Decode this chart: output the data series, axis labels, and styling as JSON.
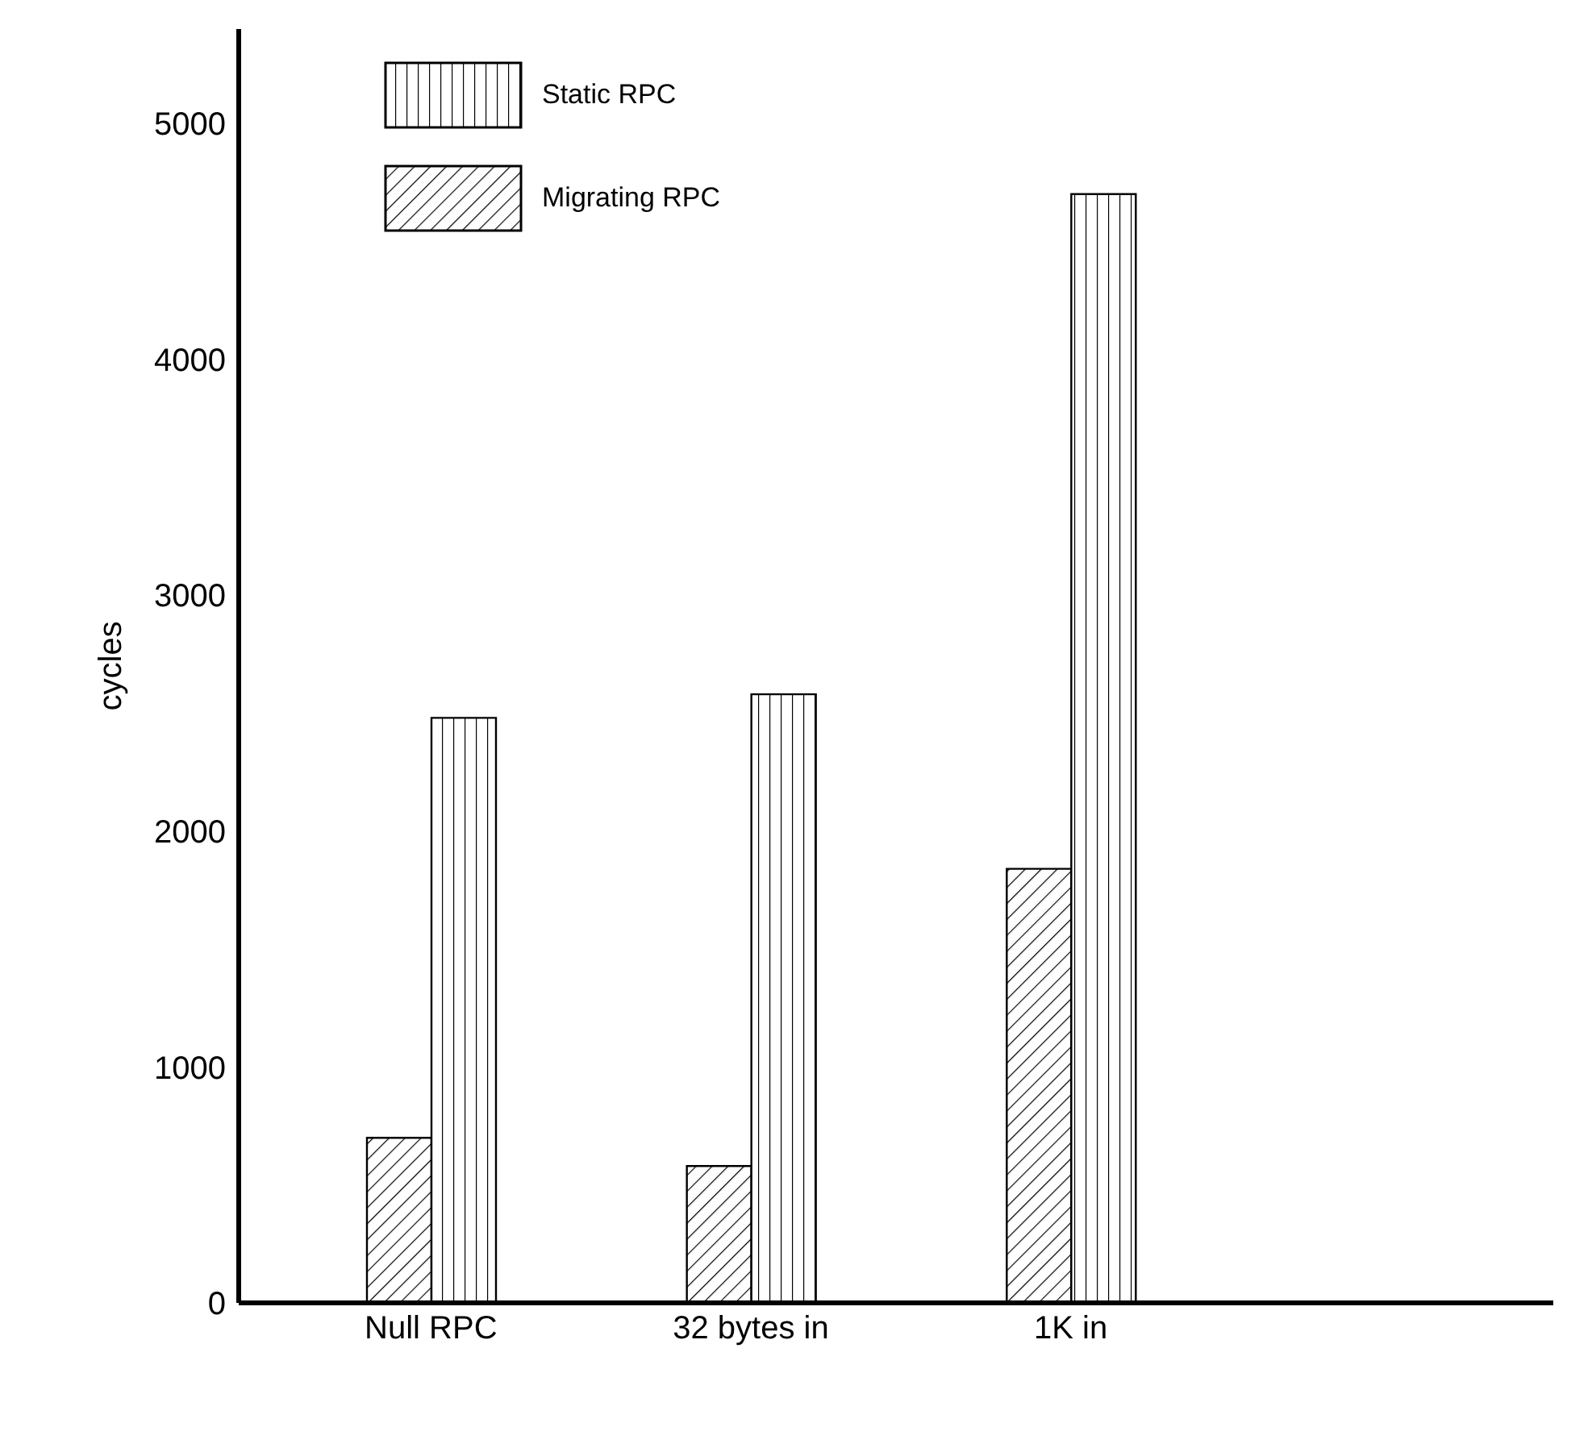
{
  "chart_data": {
    "type": "bar",
    "ylabel": "cycles",
    "categories": [
      "Null RPC",
      "32 bytes in",
      "1K in"
    ],
    "series": [
      {
        "name": "Migrating RPC",
        "color": "#000000",
        "values": [
          700,
          580,
          1840
        ]
      },
      {
        "name": "Static RPC",
        "color": "#000000",
        "values": [
          2480,
          2580,
          4700
        ]
      }
    ],
    "ylim": [
      0,
      5400
    ],
    "yticks": [
      0,
      1000,
      2000,
      3000,
      4000,
      5000
    ],
    "grid": false,
    "legend": "top left"
  }
}
